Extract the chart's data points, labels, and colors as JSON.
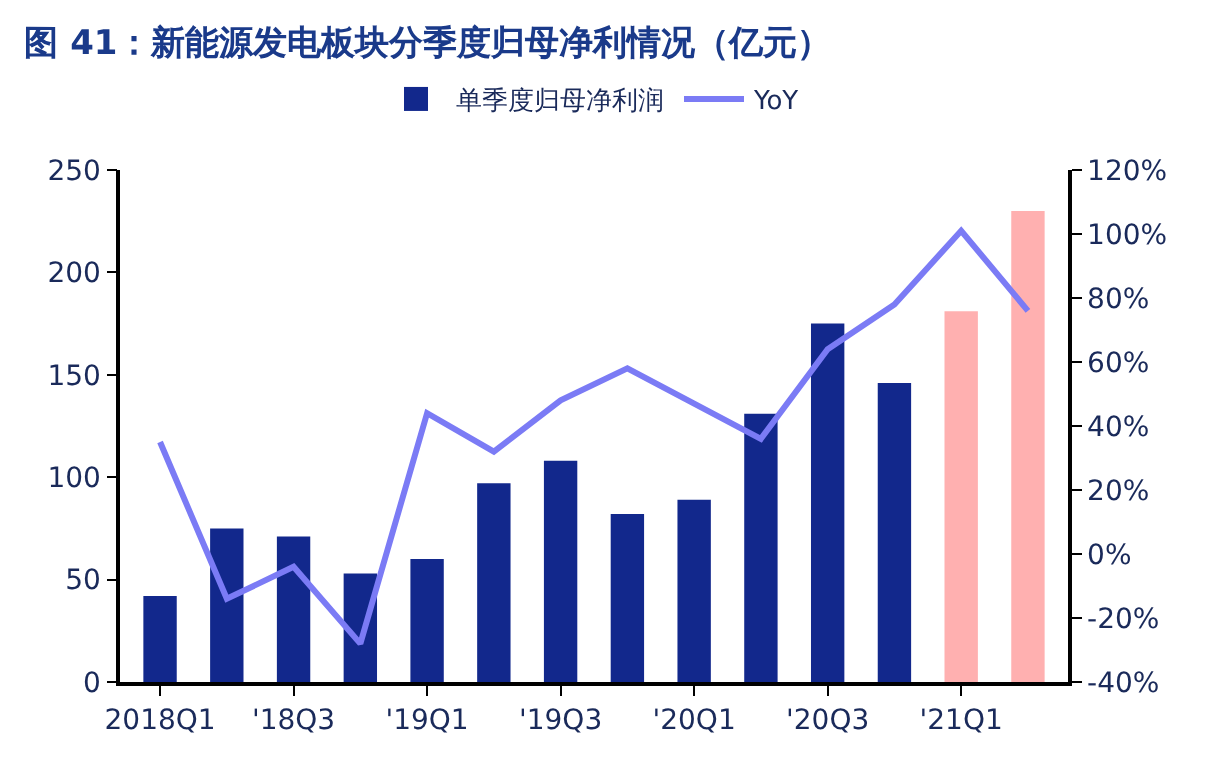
{
  "chart_data": {
    "type": "bar",
    "title": "图 41：新能源发电板块分季度归母净利情况（亿元）",
    "categories": [
      "2018Q1",
      null,
      "'18Q3",
      null,
      "'19Q1",
      null,
      "'19Q3",
      null,
      "'20Q1",
      null,
      "'20Q3",
      null,
      "'21Q1",
      null
    ],
    "series": [
      {
        "name": "单季度归母净利润",
        "color": "#12288c",
        "colors": [
          "#12288c",
          "#12288c",
          "#12288c",
          "#12288c",
          "#12288c",
          "#12288c",
          "#12288c",
          "#12288c",
          "#12288c",
          "#12288c",
          "#12288c",
          "#12288c",
          "#ffb0b0",
          "#ffb0b0"
        ],
        "values": [
          42,
          75,
          71,
          53,
          60,
          97,
          108,
          82,
          89,
          131,
          175,
          146,
          181,
          230
        ]
      },
      {
        "name": "YoY",
        "type": "line",
        "axis": "y2",
        "color": "#7b7bf5",
        "values": [
          35,
          -14,
          -4,
          -28,
          44,
          32,
          48,
          58,
          47,
          36,
          64,
          78,
          101,
          76
        ]
      }
    ],
    "ylim": [
      0,
      250
    ],
    "yticks": [
      0,
      50,
      100,
      150,
      200,
      250
    ],
    "y2lim": [
      -40,
      120
    ],
    "y2ticks": [
      {
        "value": -40,
        "label": "-40%"
      },
      {
        "value": -20,
        "label": "-20%"
      },
      {
        "value": 0,
        "label": "0%"
      },
      {
        "value": 20,
        "label": "20%"
      },
      {
        "value": 40,
        "label": "40%"
      },
      {
        "value": 60,
        "label": "60%"
      },
      {
        "value": 80,
        "label": "80%"
      },
      {
        "value": 100,
        "label": "100%"
      },
      {
        "value": 120,
        "label": "120%"
      }
    ],
    "legend": "top",
    "marker": "none",
    "line_style": "solid"
  }
}
